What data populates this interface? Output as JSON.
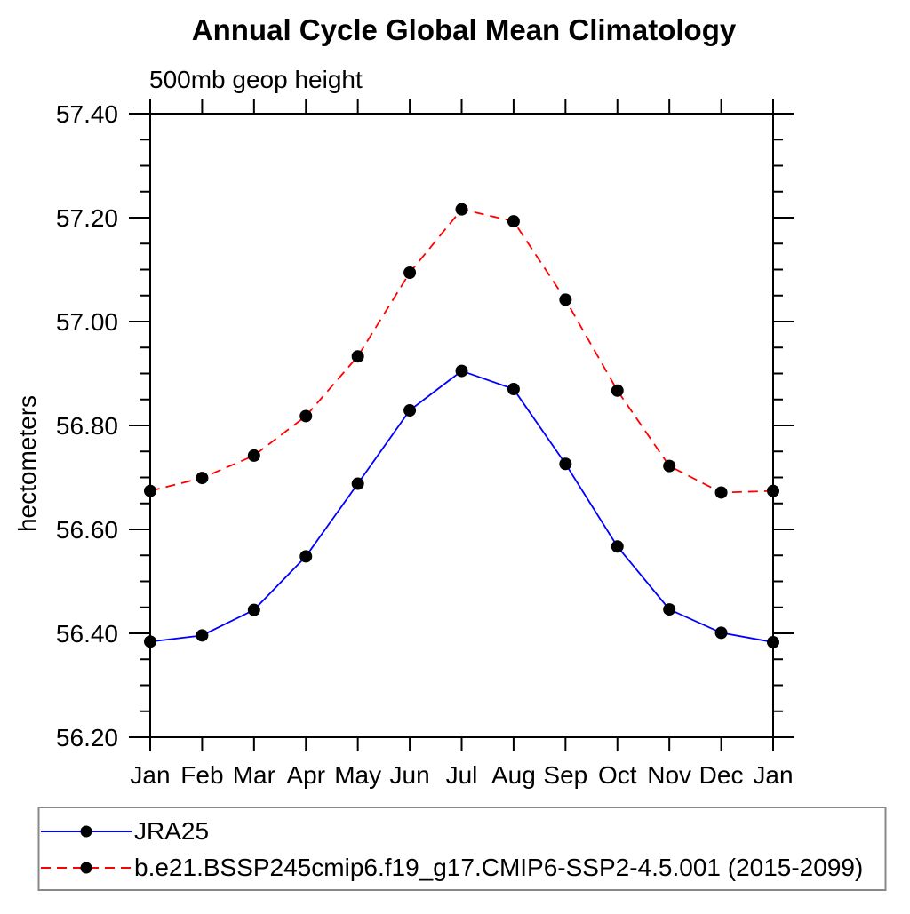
{
  "title": "Annual Cycle Global Mean Climatology",
  "subtitle": "500mb geop height",
  "chart_data": {
    "type": "line",
    "x_categories": [
      "Jan",
      "Feb",
      "Mar",
      "Apr",
      "May",
      "Jun",
      "Jul",
      "Aug",
      "Sep",
      "Oct",
      "Nov",
      "Dec",
      "Jan"
    ],
    "series": [
      {
        "name": "JRA25",
        "color": "#0000ff",
        "line_style": "solid",
        "marker": "filled-circle",
        "marker_color": "#000000",
        "values": [
          56.384,
          56.396,
          56.445,
          56.548,
          56.688,
          56.829,
          56.905,
          56.87,
          56.726,
          56.567,
          56.446,
          56.401,
          56.383
        ]
      },
      {
        "name": "b.e21.BSSP245cmip6.f19_g17.CMIP6-SSP2-4.5.001 (2015-2099)",
        "color": "#ff0000",
        "line_style": "dashed",
        "marker": "filled-circle",
        "marker_color": "#000000",
        "values": [
          56.674,
          56.699,
          56.742,
          56.818,
          56.933,
          57.094,
          57.216,
          57.193,
          57.042,
          56.867,
          56.722,
          56.671,
          56.674
        ]
      }
    ],
    "xlabel": "",
    "ylabel": "hectometers",
    "y_axis": {
      "min": 56.2,
      "max": 57.4,
      "major_step": 0.2,
      "minor_step": 0.05,
      "tick_labels": [
        "57.40",
        "57.20",
        "57.00",
        "56.80",
        "56.60",
        "56.40",
        "56.20"
      ],
      "tick_format_decimals": 2
    },
    "grid": false,
    "legend_position": "bottom",
    "frame_color": "#000000",
    "legend_border_color": "#888888"
  }
}
